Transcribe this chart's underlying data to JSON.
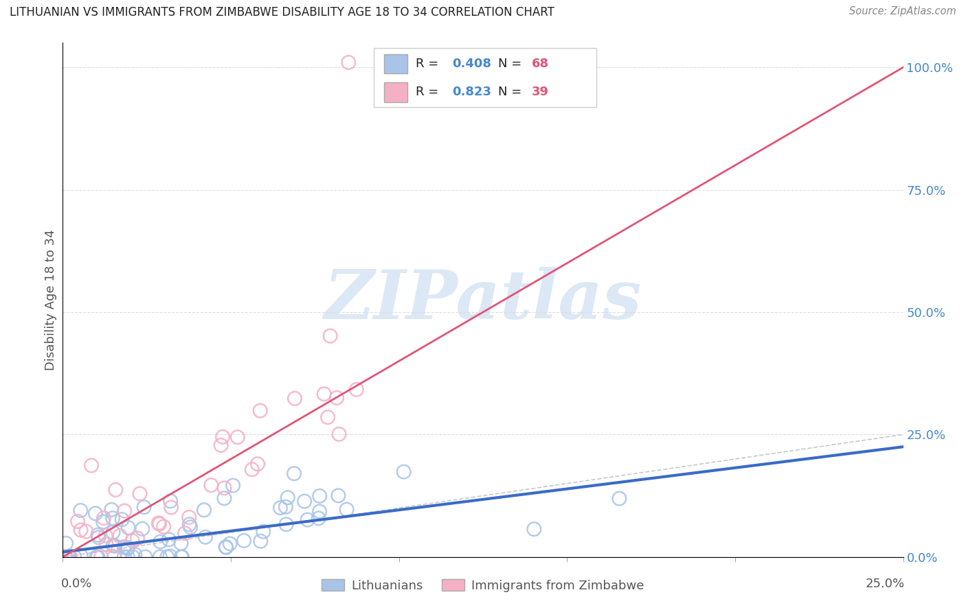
{
  "title": "LITHUANIAN VS IMMIGRANTS FROM ZIMBABWE DISABILITY AGE 18 TO 34 CORRELATION CHART",
  "source": "Source: ZipAtlas.com",
  "ylabel": "Disability Age 18 to 34",
  "legend_blue_label": "Lithuanians",
  "legend_pink_label": "Immigrants from Zimbabwe",
  "blue_color": "#a8c4e8",
  "pink_color": "#f5b0c5",
  "blue_line_color": "#3a6bc8",
  "pink_line_color": "#e05575",
  "diagonal_color": "#c8c8c8",
  "watermark_color": "#dce8f5",
  "right_tick_color": "#4488cc",
  "grid_color": "#dddddd",
  "title_color": "#222222",
  "source_color": "#888888",
  "label_color": "#555555",
  "xlim": [
    0.0,
    0.25
  ],
  "ylim": [
    0.0,
    1.05
  ],
  "blue_line_x0": 0.0,
  "blue_line_y0": 0.01,
  "blue_line_x1": 0.25,
  "blue_line_y1": 0.225,
  "pink_line_x0": 0.0,
  "pink_line_y0": 0.0,
  "pink_line_x1": 0.25,
  "pink_line_y1": 1.0,
  "right_yticks": [
    0.0,
    0.25,
    0.5,
    0.75,
    1.0
  ],
  "right_yticklabels": [
    "0.0%",
    "25.0%",
    "50.0%",
    "75.0%",
    "100.0%"
  ],
  "legend_r_blue": "0.408",
  "legend_n_blue": "68",
  "legend_r_pink": "0.823",
  "legend_n_pink": "39"
}
